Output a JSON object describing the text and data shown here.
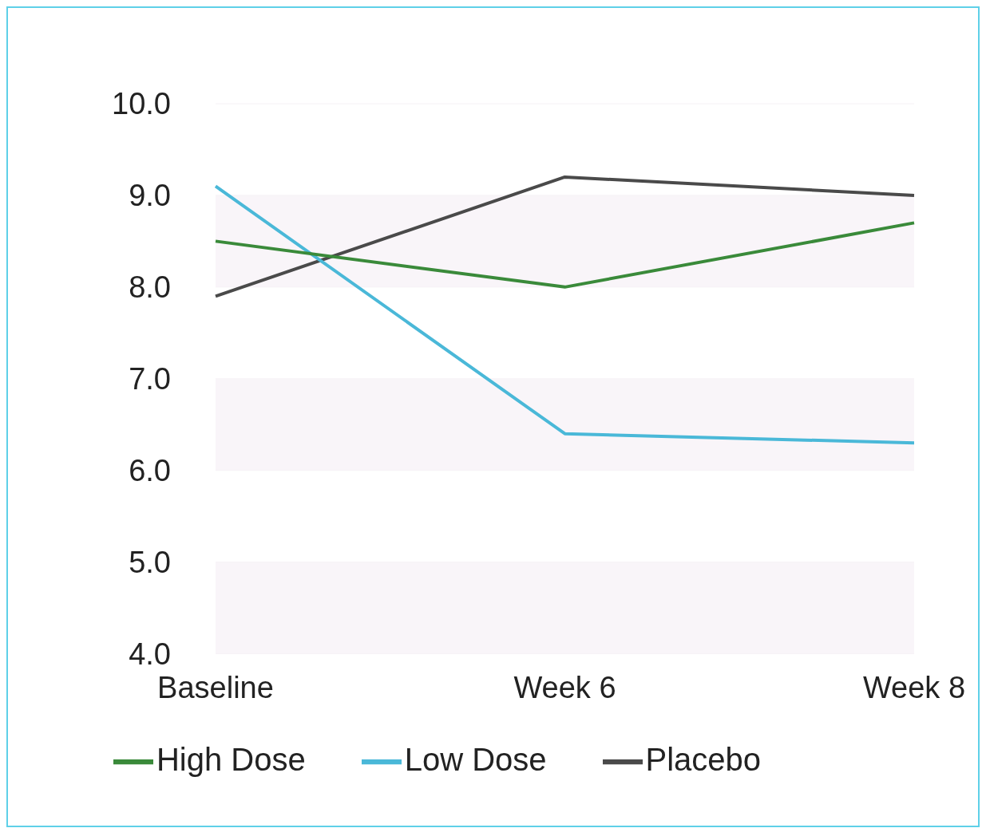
{
  "chart_data": {
    "type": "line",
    "categories": [
      "Baseline",
      "Week 6",
      "Week 8"
    ],
    "series": [
      {
        "name": "Placebo",
        "color": "#4a4a4a",
        "values": [
          7.9,
          9.2,
          9.0
        ]
      },
      {
        "name": "Low Dose",
        "color": "#4ab8d8",
        "values": [
          9.1,
          6.4,
          6.3
        ]
      },
      {
        "name": "High Dose",
        "color": "#3a8a3a",
        "values": [
          8.5,
          8.0,
          8.7
        ]
      }
    ],
    "ylim": [
      4,
      10
    ],
    "yticks": [
      {
        "value": 4,
        "label": "4.0"
      },
      {
        "value": 5,
        "label": "5.0"
      },
      {
        "value": 6,
        "label": "6.0"
      },
      {
        "value": 7,
        "label": "7.0"
      },
      {
        "value": 8,
        "label": "8.0"
      },
      {
        "value": 9,
        "label": "9.0"
      },
      {
        "value": 10,
        "label": "10.0"
      }
    ],
    "grid": "y",
    "legend": "bottom",
    "marker": "none",
    "line_style": "solid"
  }
}
